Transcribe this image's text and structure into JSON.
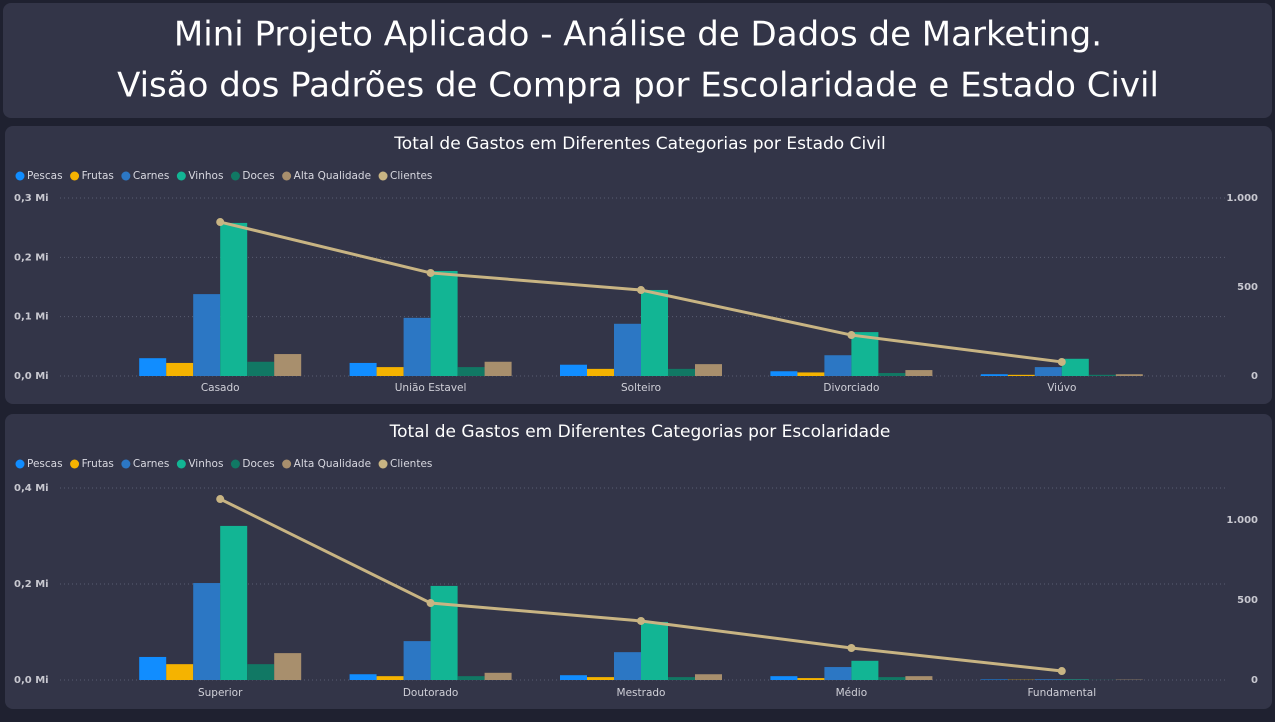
{
  "header": {
    "title": "Mini Projeto Aplicado - Análise de Dados de Marketing.",
    "subtitle": "Visão dos Padrões de Compra por Escolaridade e Estado Civil"
  },
  "chart_data": [
    {
      "type": "combo",
      "title": "Total de Gastos em Diferentes Categorias por Estado Civil",
      "categories": [
        "Casado",
        "União Estavel",
        "Solteiro",
        "Divorciado",
        "Viúvo"
      ],
      "series": [
        {
          "name": "Pescas",
          "color": "#118dff",
          "values": [
            30000,
            22000,
            19000,
            8000,
            3000
          ]
        },
        {
          "name": "Frutas",
          "color": "#f5b300",
          "values": [
            22000,
            15000,
            12000,
            6000,
            2000
          ]
        },
        {
          "name": "Carnes",
          "color": "#2c77c4",
          "values": [
            138000,
            98000,
            88000,
            35000,
            15000
          ]
        },
        {
          "name": "Vinhos",
          "color": "#12b594",
          "values": [
            258000,
            177000,
            145000,
            74000,
            29000
          ]
        },
        {
          "name": "Doces",
          "color": "#117864",
          "values": [
            24000,
            15000,
            12000,
            5000,
            2000
          ]
        },
        {
          "name": "Alta Qualidade",
          "color": "#a88f6d",
          "values": [
            37000,
            24000,
            20000,
            10000,
            3000
          ]
        },
        {
          "name": "Clientes",
          "color": "#c8b483",
          "axis": "y2",
          "values": [
            865,
            579,
            483,
            230,
            79
          ]
        }
      ],
      "ylim": [
        0,
        300000
      ],
      "yticks": [
        {
          "value": 0,
          "label": "0,0 Mi"
        },
        {
          "value": 100000,
          "label": "0,1 Mi"
        },
        {
          "value": 200000,
          "label": "0,2 Mi"
        },
        {
          "value": 300000,
          "label": "0,3 Mi"
        }
      ],
      "y2lim": [
        0,
        1000
      ],
      "y2ticks": [
        0,
        500,
        {
          "value": 1000,
          "label": "1.000"
        }
      ],
      "grid": true,
      "legend": "top-left"
    },
    {
      "type": "combo",
      "title": "Total de Gastos em Diferentes Categorias por Escolaridade",
      "categories": [
        "Superior",
        "Doutorado",
        "Mestrado",
        "Médio",
        "Fundamental"
      ],
      "series": [
        {
          "name": "Pescas",
          "color": "#118dff",
          "values": [
            48000,
            12000,
            10000,
            8000,
            1000
          ]
        },
        {
          "name": "Frutas",
          "color": "#f5b300",
          "values": [
            33000,
            8000,
            6000,
            4000,
            500
          ]
        },
        {
          "name": "Carnes",
          "color": "#2c77c4",
          "values": [
            202000,
            81000,
            58000,
            27000,
            1500
          ]
        },
        {
          "name": "Vinhos",
          "color": "#12b594",
          "values": [
            321000,
            196000,
            121000,
            40000,
            1000
          ]
        },
        {
          "name": "Doces",
          "color": "#117864",
          "values": [
            33000,
            8000,
            6000,
            6000,
            300
          ]
        },
        {
          "name": "Alta Qualidade",
          "color": "#a88f6d",
          "values": [
            56000,
            15000,
            12000,
            8000,
            700
          ]
        },
        {
          "name": "Clientes",
          "color": "#c8b483",
          "axis": "y2",
          "values": [
            1131,
            481,
            369,
            200,
            56
          ]
        }
      ],
      "ylim": [
        0,
        400000
      ],
      "yticks": [
        {
          "value": 0,
          "label": "0,0 Mi"
        },
        {
          "value": 200000,
          "label": "0,2 Mi"
        },
        {
          "value": 400000,
          "label": "0,4 Mi"
        }
      ],
      "y2lim": [
        0,
        1200
      ],
      "y2ticks": [
        0,
        500,
        {
          "value": 1000,
          "label": "1.000"
        }
      ],
      "grid": true,
      "legend": "top-left"
    }
  ]
}
